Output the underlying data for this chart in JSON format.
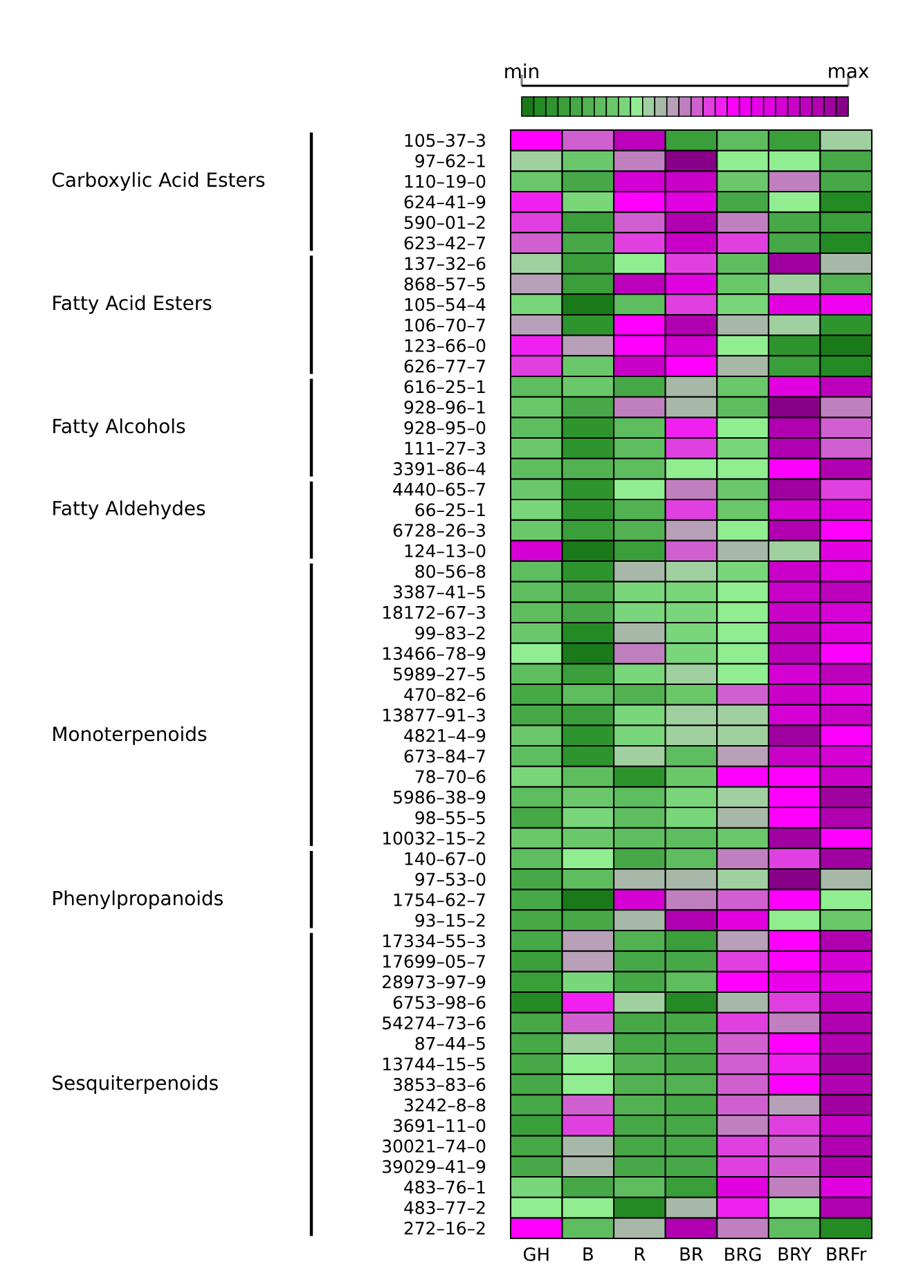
{
  "chart_data": {
    "type": "heatmap",
    "categories": [
      "GH",
      "B",
      "R",
      "BR",
      "BRG",
      "BRY",
      "BRFr"
    ],
    "y_categories": [
      "105–37–3",
      "97–62–1",
      "110–19–0",
      "624–41–9",
      "590–01–2",
      "623–42–7",
      "137–32–6",
      "868–57–5",
      "105–54–4",
      "106–70–7",
      "123–66–0",
      "626–77–7",
      "616–25–1",
      "928–96–1",
      "928–95–0",
      "111–27–3",
      "3391–86–4",
      "4440–65–7",
      "66–25–1",
      "6728–26–3",
      "124–13–0",
      "80–56–8",
      "3387–41–5",
      "18172–67–3",
      "99–83–2",
      "13466–78–9",
      "5989–27–5",
      "470–82–6",
      "13877–91–3",
      "4821–4–9",
      "673–84–7",
      "78–70–6",
      "5986–38–9",
      "98–55–5",
      "10032–15–2",
      "140–67–0",
      "97–53–0",
      "1754–62–7",
      "93–15–2",
      "17334–55–3",
      "17699–05–7",
      "28973–97–9",
      "6753–98–6",
      "54274–73–6",
      "87–44–5",
      "13744–15–5",
      "3853–83–6",
      "3242–8–8",
      "3691–11–0",
      "30021–74–0",
      "39029–41–9",
      "483–76–1",
      "483–77–2",
      "272–16–2"
    ],
    "cells": [
      [
        17,
        14,
        23,
        3,
        6,
        3,
        10
      ],
      [
        10,
        7,
        13,
        26,
        9,
        9,
        4
      ],
      [
        7,
        4,
        21,
        22,
        7,
        13,
        4
      ],
      [
        16,
        8,
        17,
        20,
        4,
        9,
        1
      ],
      [
        15,
        3,
        14,
        24,
        13,
        4,
        3
      ],
      [
        14,
        4,
        15,
        22,
        15,
        4,
        1
      ],
      [
        10,
        3,
        9,
        15,
        6,
        25,
        11
      ],
      [
        12,
        3,
        23,
        20,
        7,
        10,
        5
      ],
      [
        8,
        0,
        6,
        15,
        8,
        20,
        18
      ],
      [
        12,
        2,
        17,
        24,
        11,
        10,
        2
      ],
      [
        16,
        12,
        17,
        21,
        9,
        2,
        0
      ],
      [
        15,
        7,
        22,
        17,
        11,
        3,
        1
      ],
      [
        6,
        7,
        4,
        11,
        7,
        20,
        23
      ],
      [
        7,
        4,
        13,
        11,
        6,
        26,
        13
      ],
      [
        6,
        2,
        6,
        16,
        9,
        24,
        14
      ],
      [
        7,
        2,
        6,
        15,
        8,
        24,
        14
      ],
      [
        6,
        5,
        6,
        9,
        9,
        17,
        24
      ],
      [
        7,
        2,
        9,
        13,
        7,
        25,
        15
      ],
      [
        8,
        2,
        5,
        15,
        7,
        21,
        20
      ],
      [
        7,
        3,
        5,
        12,
        9,
        24,
        17
      ],
      [
        21,
        0,
        3,
        14,
        11,
        10,
        20
      ],
      [
        6,
        2,
        11,
        10,
        8,
        22,
        20
      ],
      [
        6,
        4,
        8,
        8,
        9,
        22,
        23
      ],
      [
        6,
        4,
        8,
        8,
        9,
        22,
        21
      ],
      [
        7,
        1,
        11,
        8,
        9,
        23,
        20
      ],
      [
        9,
        0,
        13,
        8,
        9,
        23,
        17
      ],
      [
        6,
        3,
        8,
        10,
        9,
        21,
        23
      ],
      [
        4,
        6,
        5,
        7,
        14,
        22,
        20
      ],
      [
        4,
        3,
        8,
        10,
        10,
        21,
        22
      ],
      [
        7,
        2,
        8,
        10,
        10,
        25,
        17
      ],
      [
        6,
        2,
        10,
        6,
        12,
        22,
        21
      ],
      [
        8,
        6,
        2,
        7,
        17,
        17,
        22
      ],
      [
        6,
        7,
        6,
        8,
        10,
        17,
        25
      ],
      [
        4,
        8,
        6,
        8,
        11,
        17,
        24
      ],
      [
        7,
        7,
        6,
        6,
        7,
        25,
        17
      ],
      [
        6,
        9,
        4,
        6,
        13,
        15,
        25
      ],
      [
        4,
        6,
        11,
        11,
        10,
        26,
        11
      ],
      [
        4,
        0,
        21,
        13,
        14,
        17,
        9
      ],
      [
        4,
        4,
        11,
        24,
        20,
        9,
        7
      ],
      [
        4,
        12,
        5,
        3,
        12,
        17,
        24
      ],
      [
        3,
        12,
        4,
        4,
        15,
        17,
        21
      ],
      [
        3,
        8,
        4,
        6,
        17,
        19,
        20
      ],
      [
        1,
        16,
        10,
        1,
        11,
        15,
        23
      ],
      [
        4,
        14,
        4,
        4,
        15,
        13,
        24
      ],
      [
        4,
        10,
        4,
        4,
        14,
        17,
        24
      ],
      [
        4,
        9,
        5,
        4,
        14,
        16,
        25
      ],
      [
        4,
        9,
        5,
        5,
        14,
        17,
        24
      ],
      [
        4,
        14,
        5,
        4,
        14,
        12,
        25
      ],
      [
        3,
        15,
        4,
        4,
        13,
        15,
        22
      ],
      [
        4,
        11,
        4,
        4,
        15,
        14,
        24
      ],
      [
        4,
        11,
        4,
        4,
        15,
        14,
        24
      ],
      [
        8,
        4,
        6,
        3,
        20,
        13,
        20
      ],
      [
        9,
        9,
        1,
        11,
        16,
        9,
        24
      ],
      [
        17,
        6,
        11,
        24,
        13,
        6,
        1
      ]
    ],
    "clim": [
      0,
      26
    ],
    "cticks": [
      {
        "value": 0,
        "label": "min"
      },
      {
        "value": 26,
        "label": "max"
      }
    ],
    "y2_categories": [
      null,
      null,
      "Carboxylic Acid Esters",
      null,
      null,
      null,
      null,
      null,
      "Fatty Acid Esters",
      null,
      null,
      null,
      null,
      null,
      "Fatty Alcohols",
      null,
      null,
      null,
      "Fatty Aldehydes",
      null,
      null,
      null,
      null,
      null,
      null,
      null,
      null,
      null,
      null,
      "Monoterpenoids",
      null,
      null,
      null,
      null,
      null,
      null,
      null,
      "Phenylpropanoids",
      null,
      null,
      null,
      null,
      null,
      null,
      null,
      null,
      "Sesquiterpenoids",
      null,
      null,
      null,
      null,
      null,
      null,
      null
    ]
  }
}
